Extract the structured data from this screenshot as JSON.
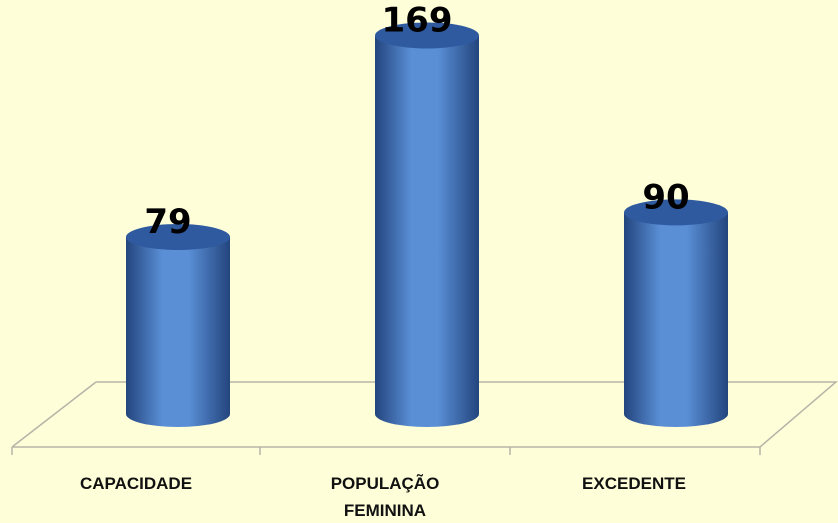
{
  "chart_data": {
    "type": "bar",
    "style": "3d-cylinder",
    "categories": [
      "CAPACIDADE",
      "POPULAÇÃO FEMININA",
      "EXCEDENTE"
    ],
    "category_lines": [
      [
        "CAPACIDADE"
      ],
      [
        "POPULAÇÃO",
        "FEMININA"
      ],
      [
        "EXCEDENTE"
      ]
    ],
    "values": [
      79,
      169,
      90
    ],
    "value_labels": [
      "79",
      "169",
      "90"
    ],
    "title": "",
    "xlabel": "",
    "ylabel": "",
    "ylim": [
      0,
      180
    ],
    "grid": false,
    "legend": "none",
    "colors": {
      "background": "#fefed8",
      "bar_light": "#5a8fd6",
      "bar_dark": "#23457e",
      "bar_top": "#2f5aa0",
      "floor_line": "#b5b5a8"
    }
  }
}
